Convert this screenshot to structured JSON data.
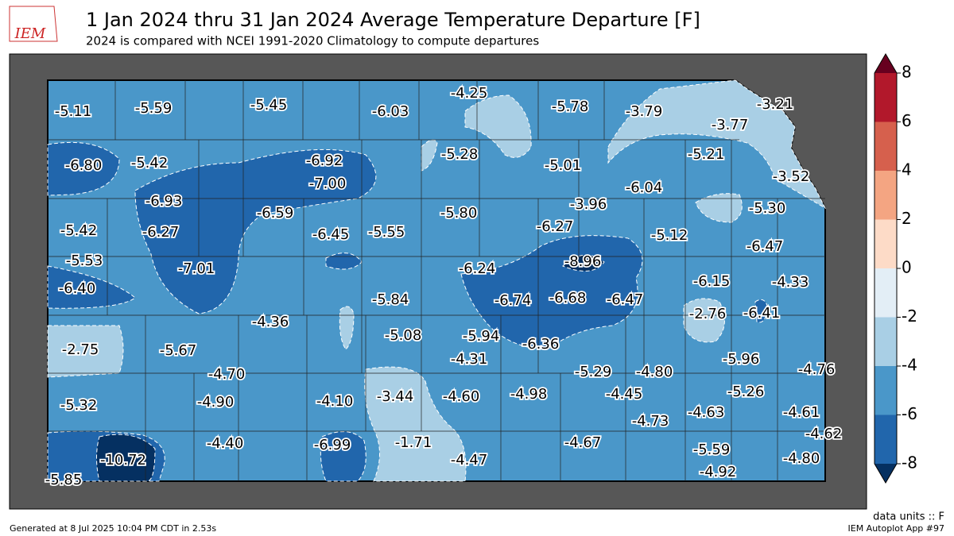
{
  "header": {
    "title": "1 Jan 2024 thru 31 Jan 2024 Average Temperature Departure [F]",
    "subtitle": "2024 is compared with NCEI 1991-2020 Climatology to compute departures",
    "logo": "IEM"
  },
  "map": {
    "values": [
      -5.11,
      -5.59,
      -5.45,
      -6.03,
      -4.25,
      -5.78,
      -3.79,
      -3.21,
      -3.77,
      -6.8,
      -5.42,
      -6.92,
      -7.0,
      -5.28,
      -5.01,
      -5.21,
      -3.52,
      -6.04,
      -6.93,
      -3.96,
      -5.3,
      -6.59,
      -5.8,
      -5.42,
      -6.27,
      -6.45,
      -5.55,
      -6.27,
      -5.12,
      -6.47,
      -5.53,
      -8.96,
      -7.01,
      -6.24,
      -6.15,
      -4.33,
      -6.4,
      -6.74,
      -6.68,
      -6.47,
      -5.84,
      -2.76,
      -6.41,
      -4.36,
      -5.08,
      -5.94,
      -6.36,
      -2.75,
      -5.67,
      -4.31,
      -5.96,
      -4.7,
      -5.29,
      -4.8,
      -4.76,
      -3.44,
      -4.6,
      -4.98,
      -4.45,
      -5.26,
      -5.32,
      -4.9,
      -4.1,
      -4.73,
      -4.63,
      -4.61,
      -4.62,
      -6.99,
      -1.71,
      -4.4,
      -4.67,
      -10.72,
      -4.47,
      -5.59,
      -4.8,
      -4.92,
      -5.85
    ],
    "value_labels": [
      "-5.11",
      "-5.59",
      "-5.45",
      "-6.03",
      "-4.25",
      "-5.78",
      "-3.79",
      "-3.21",
      "-3.77",
      "-6.80",
      "-5.42",
      "-6.92",
      "-7.00",
      "-5.28",
      "-5.01",
      "-5.21",
      "-3.52",
      "-6.04",
      "-6.93",
      "-3.96",
      "-5.30",
      "-6.59",
      "-5.80",
      "-5.42",
      "-6.27",
      "-6.45",
      "-5.55",
      "-6.27",
      "-5.12",
      "-6.47",
      "-5.53",
      "-8.96",
      "-7.01",
      "-6.24",
      "-6.15",
      "-4.33",
      "-6.40",
      "-6.74",
      "-6.68",
      "-6.47",
      "-5.84",
      "-2.76",
      "-6.41",
      "-4.36",
      "-5.08",
      "-5.94",
      "-6.36",
      "-2.75",
      "-5.67",
      "-4.31",
      "-5.96",
      "-4.70",
      "-5.29",
      "-4.80",
      "-4.76",
      "-3.44",
      "-4.60",
      "-4.98",
      "-4.45",
      "-5.26",
      "-5.32",
      "-4.90",
      "-4.10",
      "-4.73",
      "-4.63",
      "-4.61",
      "-4.62",
      "-6.99",
      "-1.71",
      "-4.40",
      "-4.67",
      "-10.72",
      "-4.47",
      "-5.59",
      "-4.80",
      "-4.92",
      "-5.85"
    ]
  },
  "colorbar": {
    "ticks": [
      8,
      6,
      4,
      2,
      0,
      -2,
      -4,
      -6,
      -8
    ],
    "colors": [
      "#b2182b",
      "#d6604d",
      "#f4a582",
      "#fddbc7",
      "#e3eef6",
      "#a9cfe5",
      "#4a97c9",
      "#2166ac"
    ],
    "over_color": "#67001f",
    "under_color": "#053061"
  },
  "footer": {
    "units": "data units :: F",
    "generated": "Generated at 8 Jul 2025 10:04 PM CDT in 2.53s",
    "app": "IEM Autoplot App #97"
  }
}
